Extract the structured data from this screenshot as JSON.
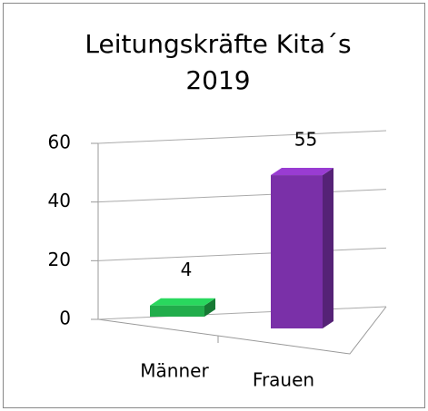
{
  "chart_data": {
    "type": "bar3d",
    "title": [
      "Leitungskräfte Kita´s",
      "2019"
    ],
    "categories": [
      "Männer",
      "Frauen"
    ],
    "values": [
      4,
      55
    ],
    "colors": [
      "#21ad4b",
      "#7a30a8"
    ],
    "ylim": [
      0,
      60
    ],
    "yticks": [
      0,
      20,
      40,
      60
    ],
    "grid": true
  }
}
